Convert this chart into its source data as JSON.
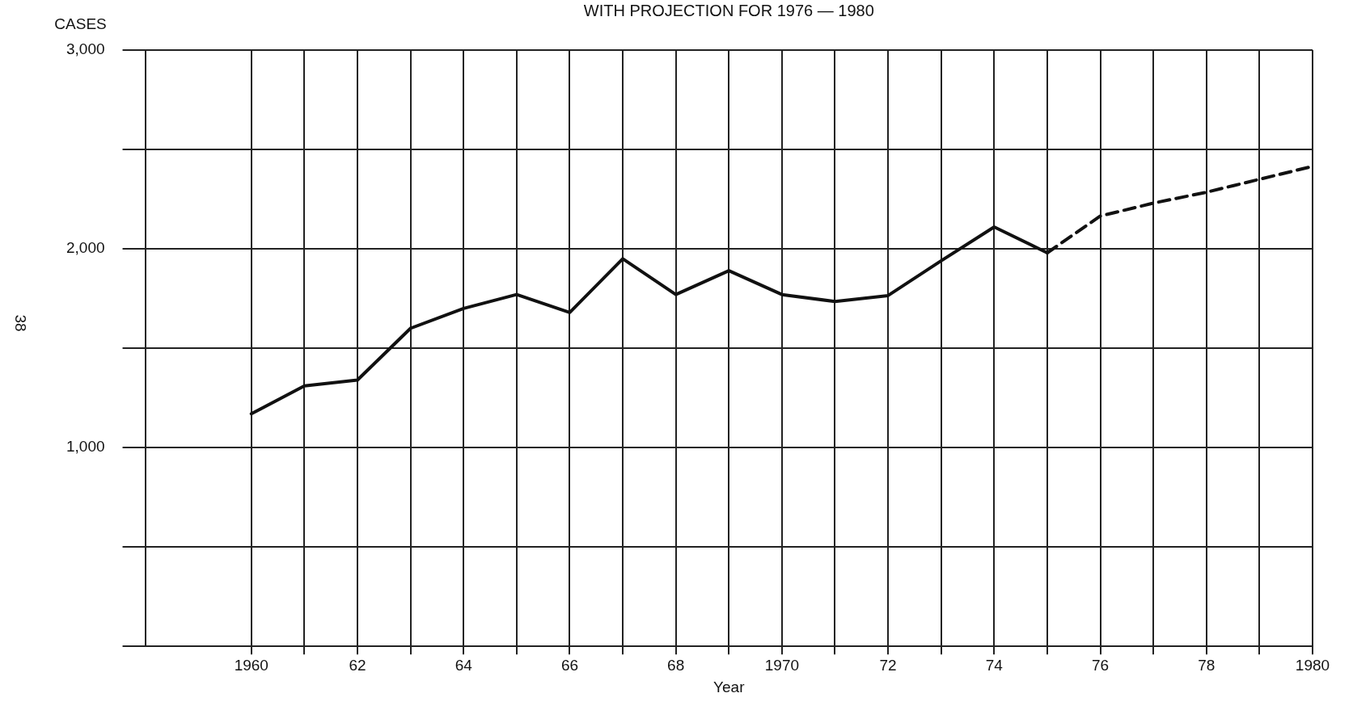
{
  "chart_data": {
    "type": "line",
    "title": "WITH PROJECTION FOR 1976 — 1980",
    "xlabel": "Year",
    "ylabel": "CASES",
    "annotations": [
      "38"
    ],
    "xlim": [
      1958,
      1980
    ],
    "xticks": [
      {
        "value": 1960,
        "label": "1960"
      },
      {
        "value": 1961,
        "label": null
      },
      {
        "value": 1962,
        "label": "62"
      },
      {
        "value": 1963,
        "label": null
      },
      {
        "value": 1964,
        "label": "64"
      },
      {
        "value": 1965,
        "label": null
      },
      {
        "value": 1966,
        "label": "66"
      },
      {
        "value": 1967,
        "label": null
      },
      {
        "value": 1968,
        "label": "68"
      },
      {
        "value": 1969,
        "label": null
      },
      {
        "value": 1970,
        "label": "1970"
      },
      {
        "value": 1971,
        "label": null
      },
      {
        "value": 1972,
        "label": "72"
      },
      {
        "value": 1973,
        "label": null
      },
      {
        "value": 1974,
        "label": "74"
      },
      {
        "value": 1975,
        "label": null
      },
      {
        "value": 1976,
        "label": "76"
      },
      {
        "value": 1977,
        "label": null
      },
      {
        "value": 1978,
        "label": "78"
      },
      {
        "value": 1979,
        "label": null
      },
      {
        "value": 1980,
        "label": "1980"
      }
    ],
    "ylim": [
      0,
      3000
    ],
    "yticks": [
      {
        "value": 0,
        "label": null
      },
      {
        "value": 500,
        "label": null
      },
      {
        "value": 1000,
        "label": "1,000"
      },
      {
        "value": 1500,
        "label": null
      },
      {
        "value": 2000,
        "label": "2,000"
      },
      {
        "value": 2500,
        "label": null
      },
      {
        "value": 3000,
        "label": "3,000"
      }
    ],
    "grid": true,
    "marker": "none",
    "series": [
      {
        "color": "#111111",
        "line_style": "solid",
        "x": [
          1960,
          1961,
          1962,
          1963,
          1964,
          1965,
          1966,
          1967,
          1968,
          1969,
          1970,
          1971,
          1972,
          1973,
          1974,
          1975
        ],
        "values": [
          1170,
          1310,
          1340,
          1600,
          1700,
          1770,
          1680,
          1950,
          1770,
          1890,
          1770,
          1735,
          1765,
          1940,
          2110,
          1980
        ]
      },
      {
        "color": "#111111",
        "line_style": "dashed",
        "x": [
          1975,
          1976,
          1977,
          1978,
          1979,
          1980
        ],
        "values": [
          1980,
          2165,
          2230,
          2285,
          2350,
          2415
        ]
      }
    ]
  }
}
